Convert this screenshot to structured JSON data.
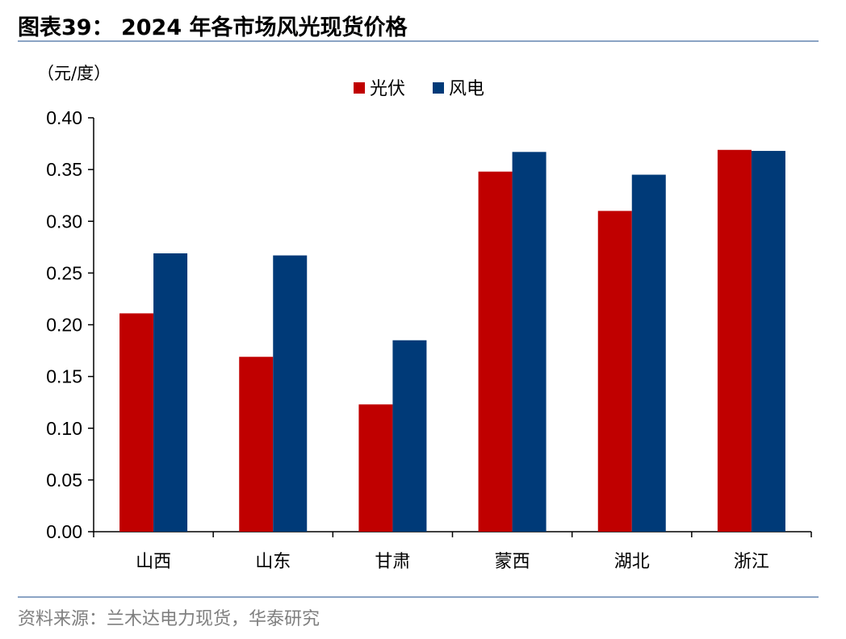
{
  "header": {
    "title": "图表39：  2024 年各市场风光现货价格"
  },
  "footer": {
    "source": "资料来源：兰木达电力现货，华泰研究"
  },
  "colors": {
    "solar": "#c00000",
    "wind": "#003a78",
    "rule": "#8aa3c4"
  },
  "chart_data": {
    "type": "bar",
    "unit_label": "（元/度）",
    "categories": [
      "山西",
      "山东",
      "甘肃",
      "蒙西",
      "湖北",
      "浙江"
    ],
    "series": [
      {
        "name": "光伏",
        "color": "#c00000",
        "values": [
          0.211,
          0.169,
          0.123,
          0.348,
          0.31,
          0.369
        ]
      },
      {
        "name": "风电",
        "color": "#003a78",
        "values": [
          0.269,
          0.267,
          0.185,
          0.367,
          0.345,
          0.368
        ]
      }
    ],
    "ylim": [
      0,
      0.4
    ],
    "yticks": [
      "0.00",
      "0.05",
      "0.10",
      "0.15",
      "0.20",
      "0.25",
      "0.30",
      "0.35",
      "0.40"
    ],
    "legend_position": "top-center",
    "grid": false
  }
}
